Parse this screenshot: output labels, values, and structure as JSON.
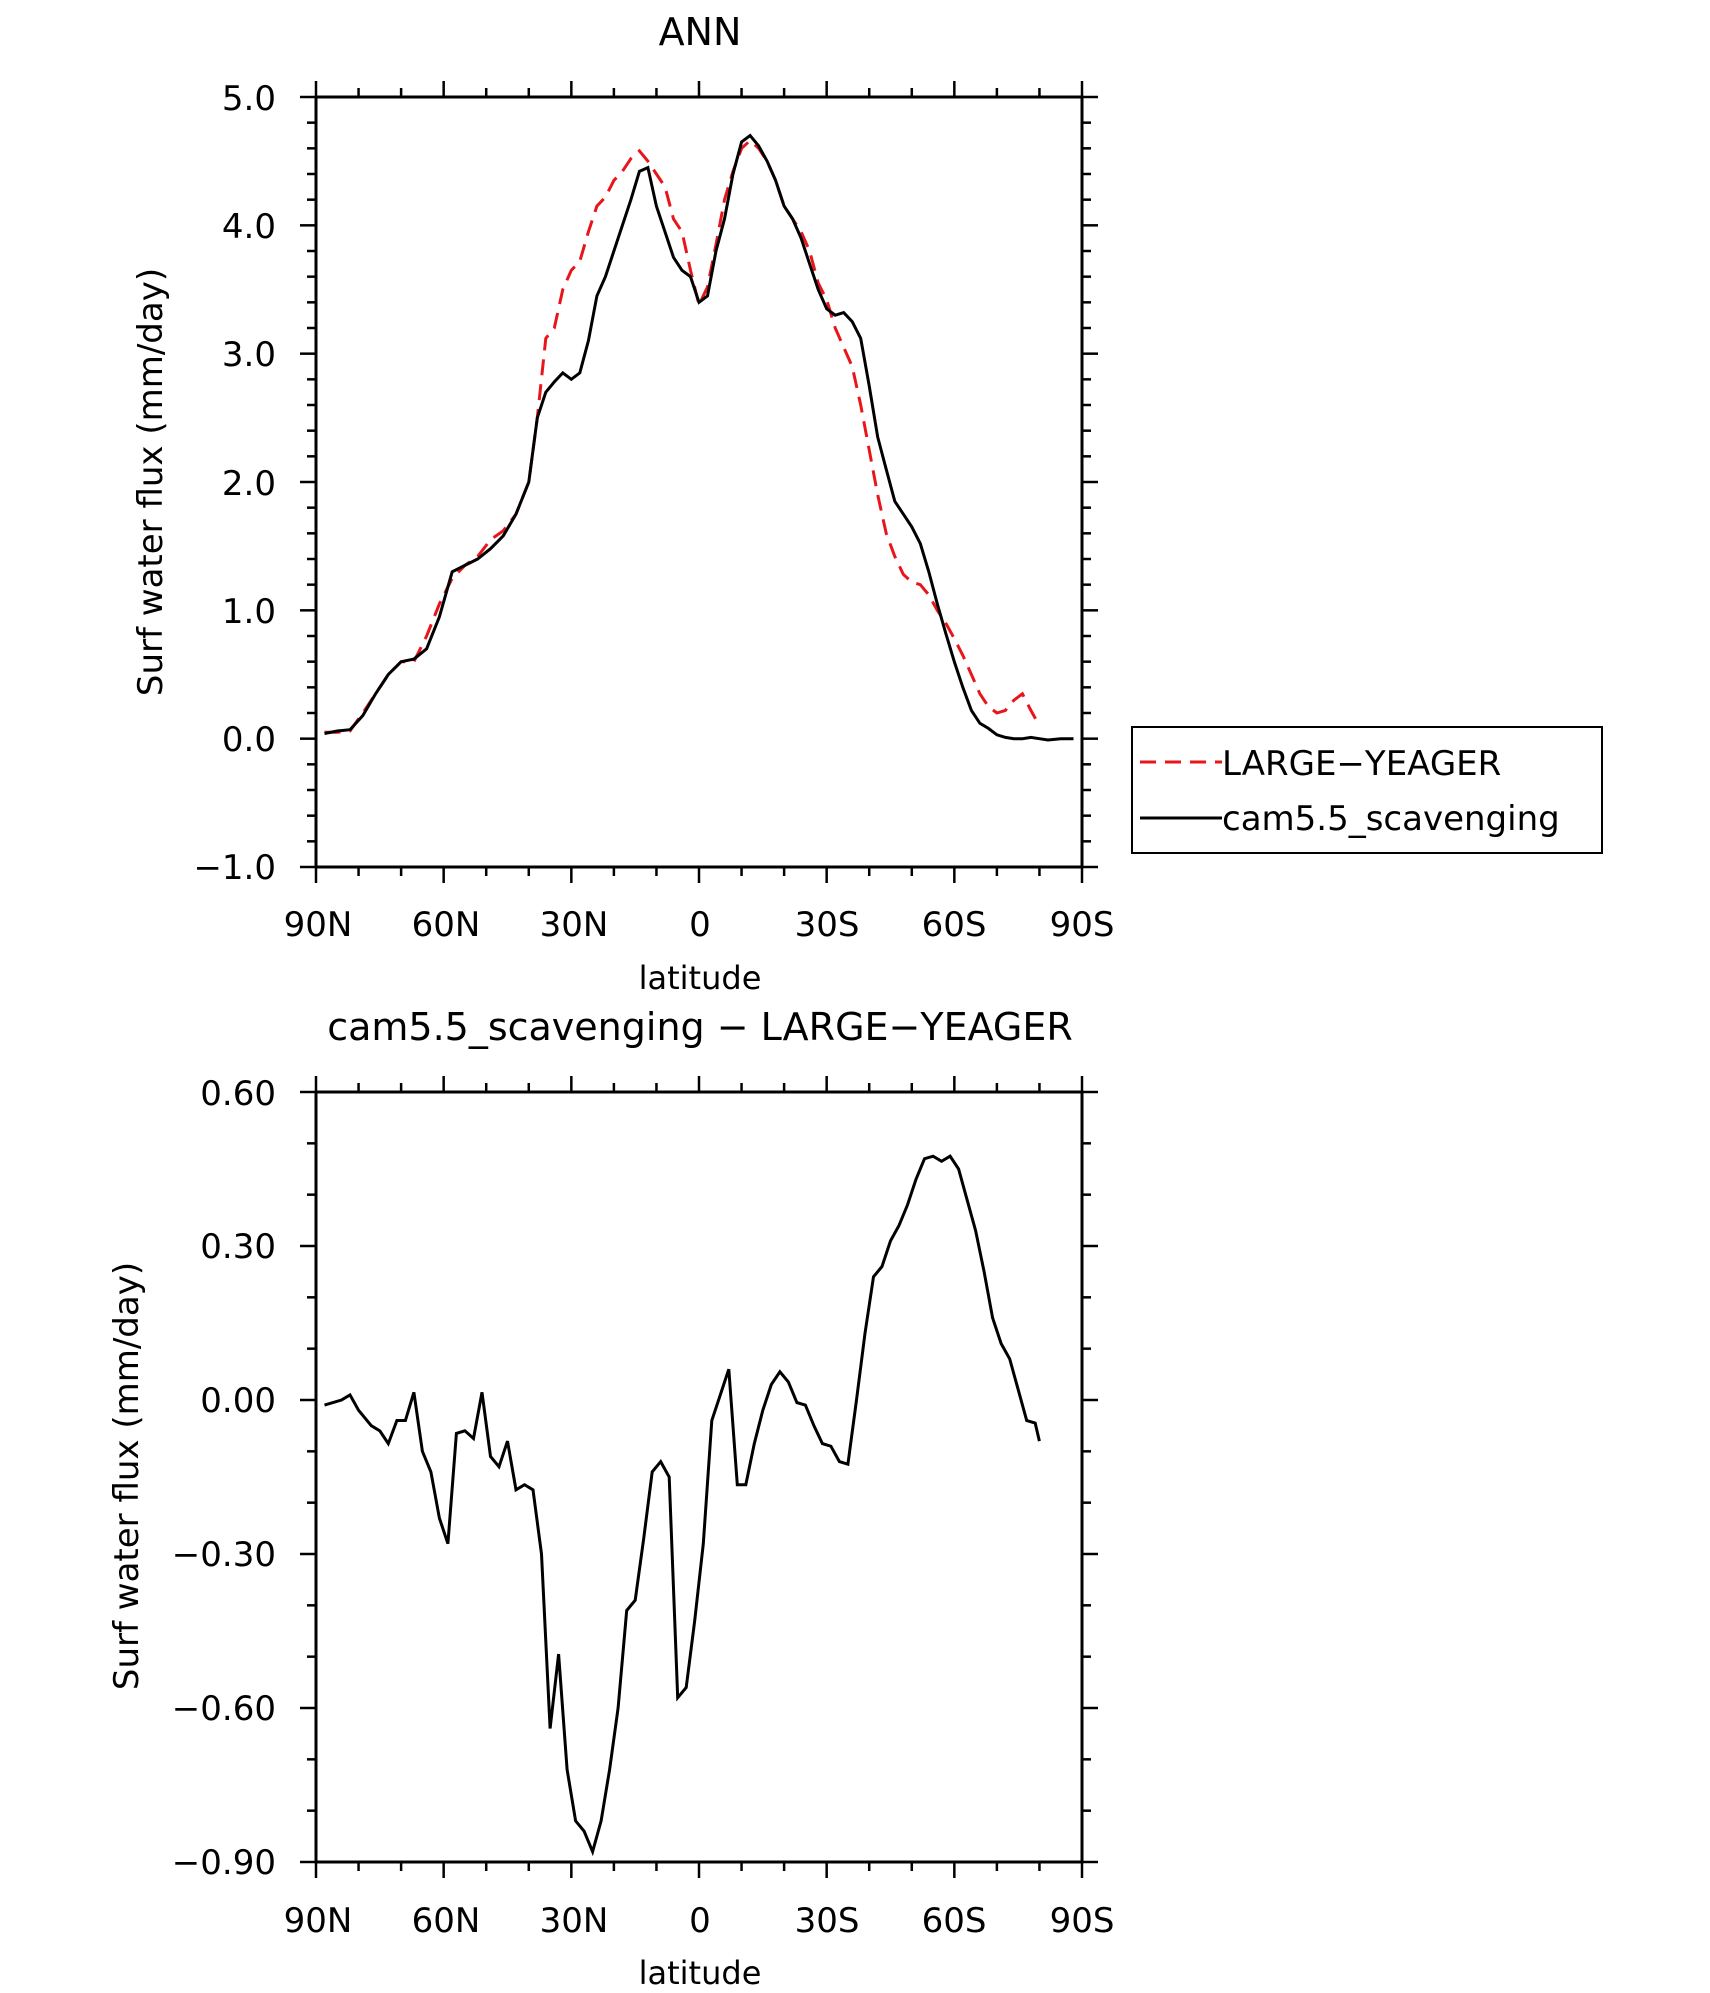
{
  "chart_data": [
    {
      "type": "line",
      "title": "ANN",
      "xlabel": "latitude",
      "ylabel": "Surf water flux (mm/day)",
      "xlim": [
        90,
        -90
      ],
      "ylim": [
        -1.0,
        5.0
      ],
      "xticks": [
        90,
        60,
        30,
        0,
        -30,
        -60,
        -90
      ],
      "xtick_labels": [
        "90N",
        "60N",
        "30N",
        "0",
        "30S",
        "60S",
        "90S"
      ],
      "yticks": [
        -1.0,
        0.0,
        1.0,
        2.0,
        3.0,
        4.0,
        5.0
      ],
      "ytick_labels": [
        "−1.0",
        "0.0",
        "1.0",
        "2.0",
        "3.0",
        "4.0",
        "5.0"
      ],
      "legend": [
        "LARGE−YEAGER",
        "cam5.5_scavenging"
      ],
      "series": [
        {
          "name": "LARGE−YEAGER",
          "color": "#e8161b",
          "style": "dashed",
          "x": [
            88,
            85,
            82,
            79,
            76,
            73,
            70,
            67,
            64,
            61,
            58,
            55,
            52,
            49,
            46,
            43,
            40,
            38,
            36,
            34,
            32,
            30,
            28,
            26,
            24,
            22,
            20,
            18,
            16,
            14,
            12,
            10,
            8,
            6,
            4,
            2,
            0,
            -2,
            -4,
            -6,
            -8,
            -10,
            -12,
            -14,
            -16,
            -18,
            -20,
            -22,
            -24,
            -26,
            -28,
            -30,
            -32,
            -34,
            -36,
            -38,
            -40,
            -42,
            -44,
            -46,
            -48,
            -50,
            -52,
            -54,
            -56,
            -58,
            -60,
            -62,
            -64,
            -66,
            -68,
            -70,
            -72,
            -74,
            -76,
            -78,
            -80
          ],
          "y": [
            0.05,
            0.05,
            0.06,
            0.2,
            0.35,
            0.5,
            0.6,
            0.6,
            0.8,
            1.05,
            1.25,
            1.35,
            1.42,
            1.55,
            1.62,
            1.75,
            2.0,
            2.5,
            3.12,
            3.2,
            3.5,
            3.65,
            3.72,
            3.95,
            4.15,
            4.22,
            4.35,
            4.42,
            4.52,
            4.58,
            4.5,
            4.4,
            4.3,
            4.05,
            3.95,
            3.65,
            3.38,
            3.52,
            3.85,
            4.2,
            4.42,
            4.6,
            4.66,
            4.6,
            4.5,
            4.35,
            4.15,
            4.05,
            3.95,
            3.8,
            3.55,
            3.42,
            3.2,
            3.05,
            2.9,
            2.6,
            2.25,
            1.9,
            1.6,
            1.42,
            1.28,
            1.22,
            1.2,
            1.12,
            1.0,
            0.9,
            0.78,
            0.65,
            0.5,
            0.35,
            0.25,
            0.2,
            0.22,
            0.3,
            0.35,
            0.22,
            0.1
          ]
        },
        {
          "name": "cam5.5_scavenging",
          "color": "#000000",
          "style": "solid",
          "x": [
            88,
            85,
            82,
            79,
            76,
            73,
            70,
            67,
            64,
            61,
            58,
            55,
            52,
            49,
            46,
            43,
            40,
            38,
            36,
            34,
            32,
            30,
            28,
            26,
            24,
            22,
            20,
            18,
            16,
            14,
            12,
            10,
            8,
            6,
            4,
            2,
            0,
            -2,
            -4,
            -6,
            -8,
            -10,
            -12,
            -14,
            -16,
            -18,
            -20,
            -22,
            -24,
            -26,
            -28,
            -30,
            -32,
            -34,
            -36,
            -38,
            -40,
            -42,
            -44,
            -46,
            -48,
            -50,
            -52,
            -54,
            -56,
            -58,
            -60,
            -62,
            -64,
            -66,
            -68,
            -70,
            -72,
            -74,
            -76,
            -78,
            -80,
            -82,
            -85,
            -88
          ],
          "y": [
            0.04,
            0.06,
            0.07,
            0.18,
            0.35,
            0.5,
            0.6,
            0.62,
            0.7,
            0.95,
            1.3,
            1.35,
            1.4,
            1.48,
            1.58,
            1.75,
            2.0,
            2.5,
            2.7,
            2.78,
            2.85,
            2.8,
            2.85,
            3.1,
            3.45,
            3.6,
            3.8,
            4.0,
            4.2,
            4.42,
            4.45,
            4.15,
            3.95,
            3.75,
            3.65,
            3.6,
            3.4,
            3.45,
            3.8,
            4.05,
            4.4,
            4.65,
            4.7,
            4.62,
            4.5,
            4.35,
            4.15,
            4.05,
            3.9,
            3.7,
            3.5,
            3.35,
            3.3,
            3.32,
            3.25,
            3.12,
            2.75,
            2.35,
            2.1,
            1.85,
            1.75,
            1.65,
            1.52,
            1.3,
            1.05,
            0.82,
            0.6,
            0.4,
            0.22,
            0.12,
            0.08,
            0.03,
            0.01,
            0.0,
            0.0,
            0.01,
            0.0,
            -0.01,
            0.0,
            0.0
          ]
        }
      ]
    },
    {
      "type": "line",
      "title": "cam5.5_scavenging − LARGE−YEAGER",
      "xlabel": "latitude",
      "ylabel": "Surf water flux (mm/day)",
      "xlim": [
        90,
        -90
      ],
      "ylim": [
        -0.9,
        0.6
      ],
      "xticks": [
        90,
        60,
        30,
        0,
        -30,
        -60,
        -90
      ],
      "xtick_labels": [
        "90N",
        "60N",
        "30N",
        "0",
        "30S",
        "60S",
        "90S"
      ],
      "yticks": [
        -0.9,
        -0.6,
        -0.3,
        0.0,
        0.3,
        0.6
      ],
      "ytick_labels": [
        "−0.90",
        "−0.60",
        "−0.30",
        "0.00",
        "0.30",
        "0.60"
      ],
      "series": [
        {
          "name": "cam5.5_scavenging − LARGE−YEAGER",
          "color": "#000000",
          "style": "solid",
          "x": [
            88,
            84,
            82,
            80,
            77,
            75,
            73,
            71,
            69,
            67,
            65,
            63,
            61,
            59,
            57,
            55,
            53,
            51,
            49,
            47,
            45,
            43,
            41,
            39,
            37,
            35,
            33,
            31,
            29,
            27,
            25,
            23,
            21,
            19,
            17,
            15,
            13,
            11,
            9,
            7,
            5,
            3,
            1,
            -1,
            -3,
            -5,
            -7,
            -9,
            -11,
            -13,
            -15,
            -17,
            -19,
            -21,
            -23,
            -25,
            -27,
            -29,
            -31,
            -33,
            -35,
            -37,
            -39,
            -41,
            -43,
            -45,
            -47,
            -49,
            -51,
            -53,
            -55,
            -57,
            -59,
            -61,
            -63,
            -65,
            -67,
            -69,
            -71,
            -73,
            -75,
            -77,
            -79,
            -80
          ],
          "y": [
            -0.01,
            0.0,
            0.01,
            -0.02,
            -0.05,
            -0.06,
            -0.085,
            -0.04,
            -0.04,
            0.015,
            -0.1,
            -0.14,
            -0.23,
            -0.28,
            -0.065,
            -0.06,
            -0.075,
            0.015,
            -0.11,
            -0.13,
            -0.08,
            -0.175,
            -0.165,
            -0.175,
            -0.3,
            -0.64,
            -0.495,
            -0.72,
            -0.82,
            -0.84,
            -0.88,
            -0.82,
            -0.72,
            -0.6,
            -0.41,
            -0.39,
            -0.27,
            -0.14,
            -0.12,
            -0.15,
            -0.58,
            -0.56,
            -0.43,
            -0.28,
            -0.04,
            0.01,
            0.06,
            -0.165,
            -0.165,
            -0.085,
            -0.02,
            0.03,
            0.055,
            0.035,
            -0.005,
            -0.01,
            -0.05,
            -0.085,
            -0.09,
            -0.12,
            -0.125,
            0.0,
            0.13,
            0.24,
            0.26,
            0.31,
            0.34,
            0.38,
            0.43,
            0.47,
            0.475,
            0.465,
            0.475,
            0.45,
            0.39,
            0.33,
            0.25,
            0.16,
            0.11,
            0.08,
            0.02,
            -0.04,
            -0.045,
            -0.08
          ]
        }
      ]
    }
  ]
}
